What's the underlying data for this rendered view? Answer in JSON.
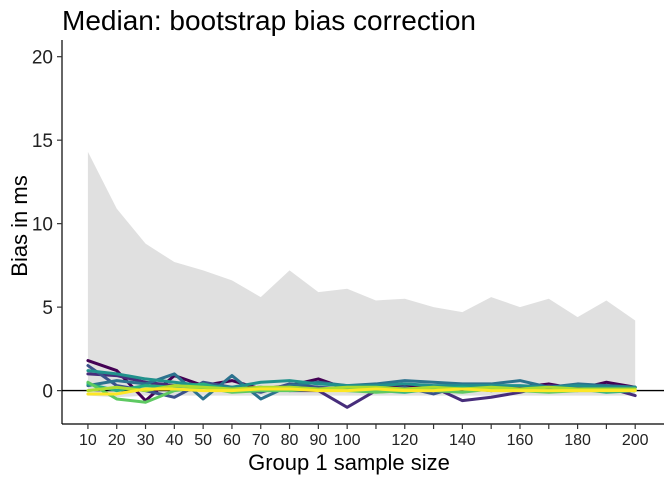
{
  "chart_data": {
    "type": "line",
    "title": "Median: bootstrap bias correction",
    "xlabel": "Group 1 sample size",
    "ylabel": "Bias in ms",
    "x": [
      10,
      20,
      30,
      40,
      50,
      60,
      70,
      80,
      90,
      100,
      110,
      120,
      130,
      140,
      150,
      160,
      170,
      180,
      190,
      200
    ],
    "xticks": [
      10,
      20,
      30,
      40,
      50,
      60,
      70,
      80,
      90,
      100,
      120,
      140,
      160,
      180,
      200
    ],
    "minor_xticks": [
      110,
      130,
      150,
      170,
      190
    ],
    "yticks": [
      0,
      5,
      10,
      15,
      20
    ],
    "xlim": [
      1,
      210
    ],
    "ylim": [
      -2,
      21
    ],
    "reference_line_y": 0,
    "grid": false,
    "band": {
      "upper": [
        14.3,
        10.9,
        8.8,
        7.7,
        7.2,
        6.6,
        5.6,
        7.2,
        5.9,
        6.1,
        5.4,
        5.5,
        5.0,
        4.7,
        5.6,
        5.0,
        5.5,
        4.4,
        5.4,
        4.2
      ],
      "lower": [
        -0.3,
        -0.4,
        -0.3,
        -0.3,
        -0.3,
        -0.3,
        -0.3,
        -0.3,
        -0.3,
        -0.3,
        -0.3,
        -0.3,
        -0.3,
        -0.3,
        -0.3,
        -0.3,
        -0.3,
        -0.3,
        -0.3,
        -0.3
      ],
      "color": "#e0e0e0"
    },
    "series": [
      {
        "color": "#440154",
        "values": [
          1.8,
          1.2,
          -0.6,
          0.9,
          0.3,
          0.6,
          0.1,
          0.3,
          0.7,
          0.1,
          0.2,
          0.3,
          0.1,
          0.2,
          0.0,
          0.2,
          0.4,
          0.1,
          0.5,
          0.2
        ]
      },
      {
        "color": "#472d7b",
        "values": [
          1.0,
          0.9,
          0.5,
          0.3,
          0.2,
          0.1,
          0.2,
          0.0,
          0.0,
          -1.0,
          0.0,
          0.1,
          0.2,
          -0.6,
          -0.4,
          -0.1,
          0.3,
          0.2,
          0.2,
          -0.3
        ]
      },
      {
        "color": "#3b528b",
        "values": [
          1.5,
          0.3,
          0.0,
          -0.4,
          0.5,
          0.2,
          -0.1,
          0.4,
          0.2,
          0.1,
          0.0,
          0.2,
          -0.2,
          0.3,
          0.1,
          0.0,
          0.1,
          0.0,
          0.3,
          0.2
        ]
      },
      {
        "color": "#2c728e",
        "values": [
          0.3,
          0.6,
          0.4,
          1.0,
          -0.5,
          0.9,
          -0.5,
          0.3,
          0.5,
          0.3,
          0.4,
          0.6,
          0.5,
          0.4,
          0.4,
          0.6,
          0.2,
          0.4,
          0.3,
          0.2
        ]
      },
      {
        "color": "#21918c",
        "values": [
          1.2,
          1.0,
          0.7,
          0.5,
          0.3,
          0.2,
          0.5,
          0.6,
          0.4,
          0.3,
          0.3,
          0.4,
          0.3,
          0.3,
          0.3,
          0.3,
          0.2,
          0.3,
          0.2,
          0.2
        ]
      },
      {
        "color": "#28ae80",
        "values": [
          0.4,
          0.0,
          0.3,
          0.2,
          0.4,
          0.0,
          0.1,
          0.2,
          0.1,
          0.1,
          0.0,
          -0.1,
          0.1,
          0.2,
          0.0,
          0.1,
          0.0,
          0.1,
          -0.1,
          0.0
        ]
      },
      {
        "color": "#5ec962",
        "values": [
          0.5,
          -0.5,
          -0.7,
          0.0,
          0.2,
          -0.1,
          0.0,
          0.0,
          0.1,
          0.0,
          -0.1,
          0.0,
          0.0,
          -0.1,
          0.1,
          0.0,
          -0.1,
          0.0,
          0.0,
          0.0
        ]
      },
      {
        "color": "#addc30",
        "values": [
          0.0,
          0.2,
          0.0,
          0.3,
          0.2,
          0.1,
          0.2,
          0.2,
          0.1,
          0.2,
          0.2,
          0.1,
          0.2,
          0.1,
          0.2,
          0.1,
          0.2,
          0.1,
          0.1,
          0.1
        ]
      },
      {
        "color": "#fde725",
        "values": [
          -0.2,
          -0.2,
          0.1,
          0.1,
          0.0,
          0.0,
          0.1,
          0.1,
          0.0,
          0.0,
          0.1,
          0.0,
          0.0,
          0.1,
          0.0,
          0.0,
          0.0,
          0.0,
          0.0,
          0.0
        ]
      }
    ]
  }
}
